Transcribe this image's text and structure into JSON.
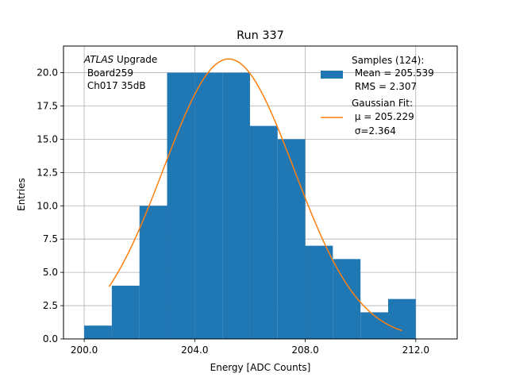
{
  "chart_data": {
    "type": "bar",
    "title": "Run 337",
    "xlabel": "Energy [ADC Counts]",
    "ylabel": "Entries",
    "xlim": [
      199.25,
      213.5
    ],
    "ylim": [
      0,
      22
    ],
    "x_ticks": [
      200,
      204,
      208,
      212
    ],
    "x_tick_labels": [
      "200.0",
      "204.0",
      "208.0",
      "212.0"
    ],
    "y_ticks": [
      0,
      2.5,
      5,
      7.5,
      10,
      12.5,
      15,
      17.5,
      20
    ],
    "y_tick_labels": [
      "0.0",
      "2.5",
      "5.0",
      "7.5",
      "10.0",
      "12.5",
      "15.0",
      "17.5",
      "20.0"
    ],
    "grid": true,
    "bar_color": "#1f77b4",
    "fit_color": "#ff7f0e",
    "histogram": {
      "bin_edges": [
        200,
        201,
        202,
        203,
        204,
        205,
        206,
        207,
        208,
        209,
        210,
        211,
        212
      ],
      "counts": [
        1,
        4,
        10,
        20,
        20,
        20,
        16,
        15,
        7,
        6,
        2,
        3
      ]
    },
    "fit": {
      "amplitude": 21.03,
      "mu": 205.229,
      "sigma": 2.364,
      "x_range": [
        200.9,
        211.5
      ]
    },
    "annotation": {
      "lines": [
        {
          "italic": "ATLAS",
          "text": " Upgrade"
        },
        {
          "italic": "",
          "text": " Board259"
        },
        {
          "italic": "",
          "text": " Ch017 35dB"
        }
      ]
    },
    "legend": {
      "position": "upper-right",
      "hist_lines": [
        "Samples (124):",
        " Mean = 205.539",
        " RMS = 2.307"
      ],
      "fit_lines": [
        "Gaussian Fit:",
        " μ = 205.229",
        " σ=2.364"
      ]
    }
  }
}
